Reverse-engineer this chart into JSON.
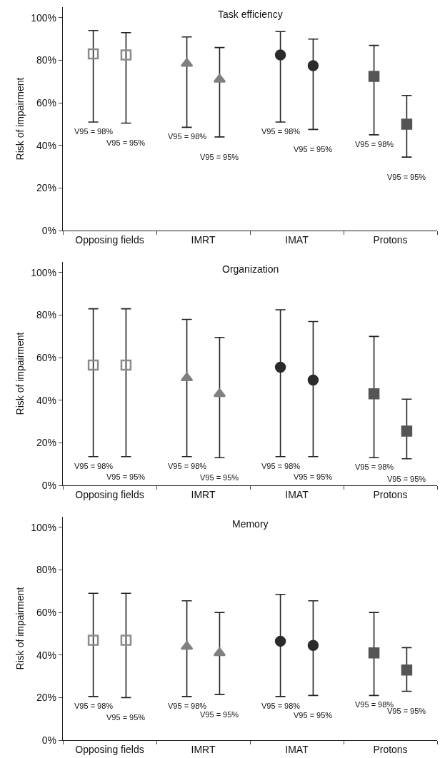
{
  "chart_data": [
    {
      "type": "scatter",
      "title": "Task efficiency",
      "ylabel": "Risk of impairment",
      "categories": [
        "Opposing fields",
        "IMRT",
        "IMAT",
        "Protons"
      ],
      "ylim": [
        0,
        105
      ],
      "yticks": [
        {
          "value": 0,
          "label": "0%"
        },
        {
          "value": 20,
          "label": "20%"
        },
        {
          "value": 40,
          "label": "40%"
        },
        {
          "value": 60,
          "label": "60%"
        },
        {
          "value": 80,
          "label": "80%"
        },
        {
          "value": 100,
          "label": "100%"
        }
      ],
      "series": [
        {
          "colors": [
            "#8c8c8c",
            "#808080",
            "#2b2b2b",
            "#555555"
          ],
          "marker": [
            "square-open",
            "triangle",
            "circle",
            "square"
          ],
          "values": [
            83,
            78.5,
            82.5,
            72.5
          ],
          "errors": [
            [
              51,
              94
            ],
            [
              48.5,
              91
            ],
            [
              51,
              93.5
            ],
            [
              45,
              87
            ]
          ]
        },
        {
          "colors": [
            "#8c8c8c",
            "#808080",
            "#2b2b2b",
            "#555555"
          ],
          "marker": [
            "square-open",
            "triangle",
            "circle",
            "square"
          ],
          "values": [
            82.5,
            71,
            77.5,
            50
          ],
          "errors": [
            [
              50.5,
              93
            ],
            [
              44,
              86
            ],
            [
              47.5,
              90
            ],
            [
              34.5,
              63.5
            ]
          ]
        }
      ],
      "annotations": [
        "V95 = 98%",
        "V95 = 95%",
        "V95 = 98%",
        "V95 = 95%",
        "V95 = 98%",
        "V95 = 95%",
        "V95 = 98%",
        "V95 = 95%"
      ]
    },
    {
      "type": "scatter",
      "title": "Organization",
      "ylabel": "Risk of impairment",
      "categories": [
        "Opposing fields",
        "IMRT",
        "IMAT",
        "Protons"
      ],
      "ylim": [
        0,
        105
      ],
      "yticks": [
        {
          "value": 0,
          "label": "0%"
        },
        {
          "value": 20,
          "label": "20%"
        },
        {
          "value": 40,
          "label": "40%"
        },
        {
          "value": 60,
          "label": "60%"
        },
        {
          "value": 80,
          "label": "80%"
        },
        {
          "value": 100,
          "label": "100%"
        }
      ],
      "series": [
        {
          "colors": [
            "#8c8c8c",
            "#808080",
            "#2b2b2b",
            "#555555"
          ],
          "marker": [
            "square-open",
            "triangle",
            "circle",
            "square"
          ],
          "values": [
            56.5,
            50.5,
            55.5,
            43
          ],
          "errors": [
            [
              13.5,
              83
            ],
            [
              13.5,
              78
            ],
            [
              13.5,
              82.5
            ],
            [
              13,
              70
            ]
          ]
        },
        {
          "colors": [
            "#8c8c8c",
            "#808080",
            "#2b2b2b",
            "#555555"
          ],
          "marker": [
            "square-open",
            "triangle",
            "circle",
            "square"
          ],
          "values": [
            56.5,
            43,
            49.5,
            25.5
          ],
          "errors": [
            [
              13.5,
              83
            ],
            [
              13,
              69.5
            ],
            [
              13.5,
              77
            ],
            [
              12.5,
              40.5
            ]
          ]
        }
      ],
      "annotations": [
        "V95 = 98%",
        "V95 = 95%",
        "V95 = 98%",
        "V95 = 95%",
        "V95 = 98%",
        "V95 = 95%",
        "V95 = 98%",
        "V95 = 95%"
      ]
    },
    {
      "type": "scatter",
      "title": "Memory",
      "ylabel": "Risk of impairment",
      "categories": [
        "Opposing fields",
        "IMRT",
        "IMAT",
        "Protons"
      ],
      "ylim": [
        0,
        105
      ],
      "yticks": [
        {
          "value": 0,
          "label": "0%"
        },
        {
          "value": 20,
          "label": "20%"
        },
        {
          "value": 40,
          "label": "40%"
        },
        {
          "value": 60,
          "label": "60%"
        },
        {
          "value": 80,
          "label": "80%"
        },
        {
          "value": 100,
          "label": "100%"
        }
      ],
      "series": [
        {
          "colors": [
            "#8c8c8c",
            "#808080",
            "#2b2b2b",
            "#555555"
          ],
          "marker": [
            "square-open",
            "triangle",
            "circle",
            "square"
          ],
          "values": [
            47,
            44,
            46.5,
            41
          ],
          "errors": [
            [
              20.5,
              69
            ],
            [
              20.5,
              65.5
            ],
            [
              20.5,
              68.5
            ],
            [
              21,
              60
            ]
          ]
        },
        {
          "colors": [
            "#8c8c8c",
            "#808080",
            "#2b2b2b",
            "#555555"
          ],
          "marker": [
            "square-open",
            "triangle",
            "circle",
            "square"
          ],
          "values": [
            47,
            41,
            44.5,
            33
          ],
          "errors": [
            [
              20,
              69
            ],
            [
              21.5,
              60
            ],
            [
              21,
              65.5
            ],
            [
              23,
              43.5
            ]
          ]
        }
      ],
      "annotations": [
        "V95 = 98%",
        "V95 = 95%",
        "V95 = 98%",
        "V95 = 95%",
        "V95 = 98%",
        "V95 = 95%",
        "V95 = 98%",
        "V95 = 95%"
      ]
    }
  ]
}
